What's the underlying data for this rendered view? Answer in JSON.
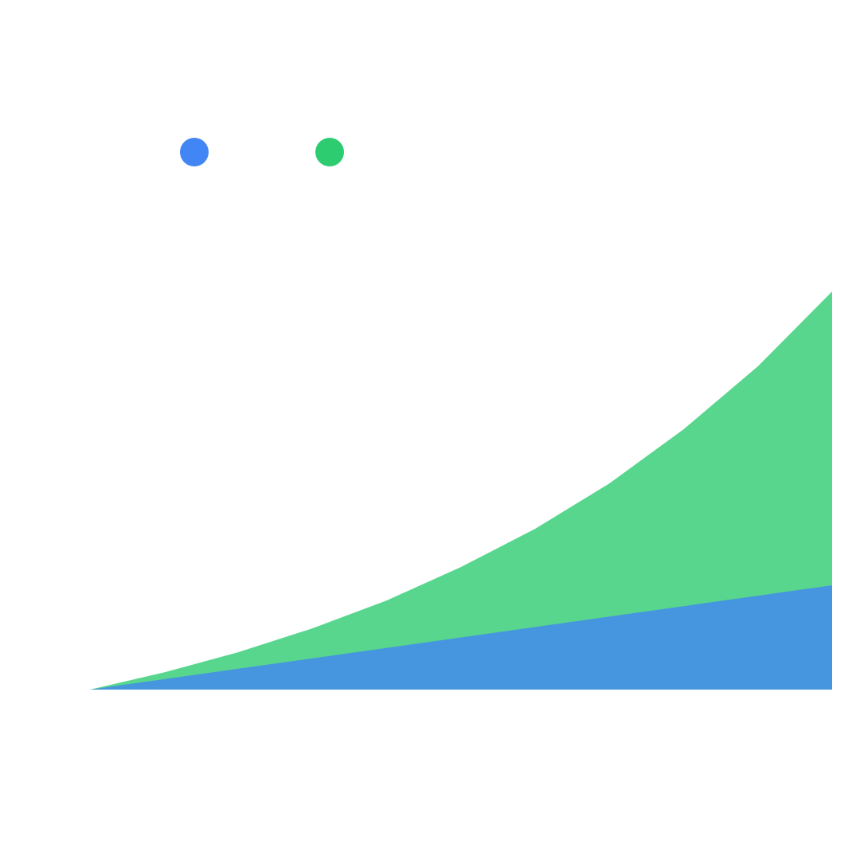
{
  "chart_data": {
    "type": "area",
    "x": [
      0,
      1,
      2,
      3,
      4,
      5,
      6,
      7,
      8,
      9,
      10
    ],
    "xlim": [
      0,
      10
    ],
    "ylim": [
      0,
      500
    ],
    "stacked": false,
    "fill_opacity": 0.8,
    "series": [
      {
        "color": "#4285f4",
        "values": [
          0,
          13.1,
          26.2,
          39.3,
          52.4,
          65.5,
          78.6,
          91.7,
          104.8,
          117.9,
          131
        ]
      },
      {
        "color": "#2ecc71",
        "values": [
          0,
          21.6,
          47,
          77,
          112,
          154,
          202,
          259,
          327,
          406,
          500
        ]
      }
    ]
  }
}
